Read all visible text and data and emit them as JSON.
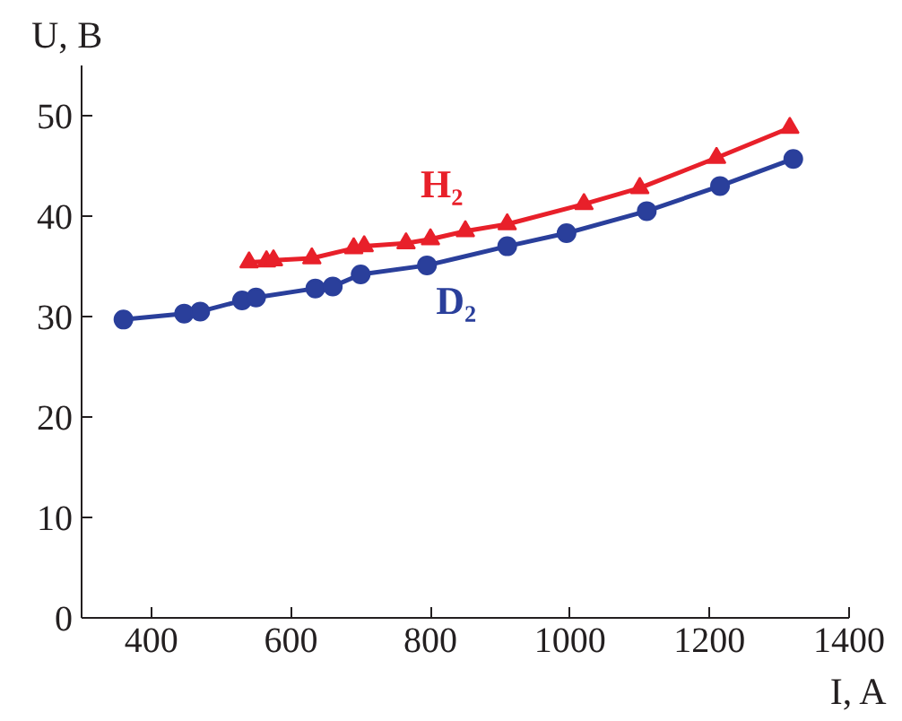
{
  "chart_data": {
    "type": "line",
    "xlabel": "I, A",
    "ylabel": "U, В",
    "xlim": [
      300,
      1400
    ],
    "ylim": [
      0,
      55
    ],
    "xticks": [
      400,
      600,
      800,
      1000,
      1200,
      1400
    ],
    "yticks": [
      0,
      10,
      20,
      30,
      40,
      50
    ],
    "grid": false,
    "line_style": "solid",
    "series": [
      {
        "name": "H₂",
        "color": "#e8202a",
        "marker": "triangle",
        "x": [
          540,
          565,
          575,
          630,
          690,
          705,
          765,
          800,
          850,
          910,
          1020,
          1100,
          1210,
          1315
        ],
        "values": [
          35.4,
          35.5,
          35.6,
          35.8,
          36.8,
          37.0,
          37.3,
          37.7,
          38.5,
          39.2,
          41.2,
          42.8,
          45.8,
          48.8
        ]
      },
      {
        "name": "D₂",
        "color": "#2a3f9b",
        "marker": "circle",
        "x": [
          360,
          447,
          470,
          530,
          550,
          635,
          660,
          700,
          795,
          910,
          995,
          1110,
          1215,
          1320
        ],
        "values": [
          29.7,
          30.3,
          30.5,
          31.6,
          31.9,
          32.8,
          33.0,
          34.2,
          35.1,
          37.0,
          38.3,
          40.5,
          43.0,
          45.7
        ]
      }
    ]
  }
}
